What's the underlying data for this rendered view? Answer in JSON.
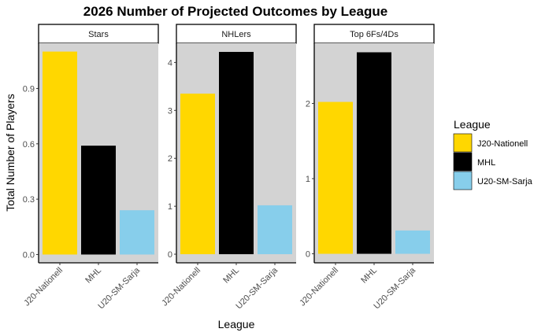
{
  "chart_data": {
    "type": "bar",
    "title": "2026 Number of Projected Outcomes by League",
    "xlabel": "League",
    "ylabel": "Total Number of Players",
    "categories": [
      "J20-Nationell",
      "MHL",
      "U20-SM-Sarja"
    ],
    "category_tick_labels": [
      "J20-Nationell",
      "MHL",
      "U20-SM-Sarja"
    ],
    "colors": {
      "J20-Nationell": "#FFD700",
      "MHL": "#000000",
      "U20-SM-Sarja": "#87CEEB",
      "panel_background": "#D3D3D3",
      "strip_background": "#FFFFFF"
    },
    "grid": false,
    "legend": {
      "title": "League",
      "placement": "right",
      "entries": [
        "J20-Nationell",
        "MHL",
        "U20-SM-Sarja"
      ]
    },
    "facets": [
      {
        "label": "Stars",
        "values": [
          1.1,
          0.59,
          0.24
        ],
        "ylim": [
          -0.045,
          1.145
        ],
        "yticks": [
          0.0,
          0.3,
          0.6,
          0.9
        ],
        "ytick_labels": [
          "0.0",
          "0.3",
          "0.6",
          "0.9"
        ]
      },
      {
        "label": "NHLers",
        "values": [
          3.35,
          4.22,
          1.02
        ],
        "ylim": [
          -0.18,
          4.4
        ],
        "yticks": [
          0,
          1,
          2,
          3,
          4
        ],
        "ytick_labels": [
          "0",
          "1",
          "2",
          "3",
          "4"
        ]
      },
      {
        "label": "Top 6Fs/4Ds",
        "values": [
          2.02,
          2.68,
          0.31
        ],
        "ylim": [
          -0.12,
          2.8
        ],
        "yticks": [
          0,
          1,
          2
        ],
        "ytick_labels": [
          "0",
          "1",
          "2"
        ]
      }
    ]
  }
}
